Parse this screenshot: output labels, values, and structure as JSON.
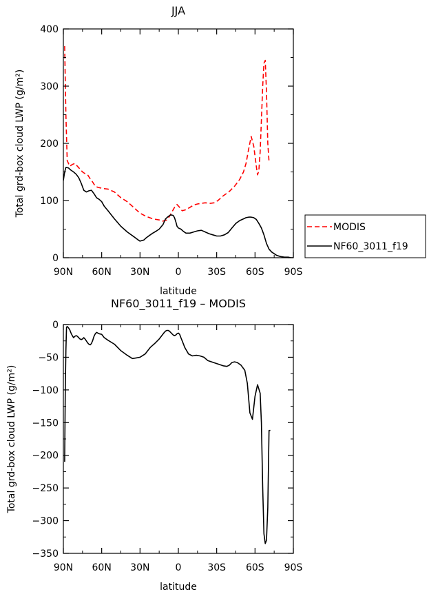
{
  "chart_data": [
    {
      "type": "line",
      "title": "JJA",
      "xlabel": "latitude",
      "ylabel": "Total grd-box cloud LWP (g/m²)",
      "xlim": [
        90,
        -90
      ],
      "ylim": [
        0,
        400
      ],
      "xtick_values": [
        90,
        60,
        30,
        0,
        -30,
        -60,
        -90
      ],
      "xtick_labels": [
        "90N",
        "60N",
        "30N",
        "0",
        "30S",
        "60S",
        "90S"
      ],
      "ytick_values": [
        0,
        100,
        200,
        300,
        400
      ],
      "ytick_labels": [
        "0",
        "100",
        "200",
        "300",
        "400"
      ],
      "legend": {
        "placement": "right",
        "entries": [
          {
            "series": "MODIS",
            "label": "MODIS"
          },
          {
            "series": "NF60_3011_f19",
            "label": "NF60_3011_f19"
          }
        ]
      },
      "series": [
        {
          "name": "MODIS",
          "color": "#ff0000",
          "dash": "dashed",
          "x": [
            89,
            88,
            87,
            86,
            85,
            83,
            81,
            79,
            77,
            75,
            73,
            71,
            69,
            67,
            65,
            63,
            61,
            59,
            55,
            50,
            45,
            40,
            35,
            30,
            25,
            20,
            15,
            12,
            9,
            7,
            5,
            3,
            1,
            -1,
            -3,
            -6,
            -9,
            -12,
            -15,
            -18,
            -21,
            -25,
            -28,
            -31,
            -35,
            -40,
            -44,
            -48,
            -51,
            -53,
            -55,
            -57,
            -59,
            -61,
            -62,
            -63,
            -64,
            -65,
            -66,
            -67,
            -68,
            -69,
            -70,
            -71
          ],
          "y": [
            370,
            250,
            170,
            165,
            160,
            163,
            165,
            160,
            155,
            150,
            147,
            145,
            138,
            132,
            125,
            123,
            122,
            121,
            120,
            115,
            105,
            98,
            88,
            78,
            72,
            68,
            66,
            64,
            66,
            72,
            80,
            88,
            93,
            88,
            82,
            84,
            88,
            92,
            94,
            95,
            96,
            95,
            96,
            100,
            108,
            116,
            125,
            137,
            150,
            165,
            190,
            212,
            195,
            160,
            145,
            152,
            185,
            240,
            300,
            340,
            345,
            290,
            200,
            168
          ]
        },
        {
          "name": "NF60_3011_f19",
          "color": "#000000",
          "dash": "solid",
          "x": [
            90,
            89,
            88,
            86,
            84,
            82,
            80,
            78,
            76,
            74,
            72,
            70,
            68,
            66,
            64,
            62,
            60,
            58,
            55,
            50,
            45,
            40,
            35,
            32,
            30,
            27,
            25,
            22,
            20,
            17,
            15,
            12,
            10,
            8,
            6,
            4,
            3,
            2,
            1,
            0,
            -2,
            -4,
            -6,
            -9,
            -12,
            -15,
            -18,
            -21,
            -24,
            -27,
            -30,
            -33,
            -36,
            -39,
            -42,
            -45,
            -48,
            -51,
            -53,
            -55,
            -57,
            -59,
            -61,
            -63,
            -65,
            -67,
            -69,
            -71,
            -73,
            -75,
            -77,
            -80,
            -83,
            -86,
            -88,
            -90
          ],
          "y": [
            135,
            150,
            158,
            157,
            153,
            150,
            146,
            140,
            130,
            118,
            115,
            117,
            118,
            112,
            105,
            102,
            98,
            90,
            82,
            68,
            55,
            45,
            37,
            32,
            29,
            31,
            35,
            40,
            43,
            47,
            50,
            58,
            68,
            72,
            75,
            74,
            70,
            63,
            55,
            52,
            50,
            46,
            43,
            43,
            45,
            47,
            48,
            45,
            42,
            40,
            38,
            38,
            40,
            44,
            52,
            60,
            65,
            68,
            70,
            71,
            71,
            70,
            67,
            60,
            52,
            40,
            25,
            15,
            10,
            7,
            4,
            2,
            1,
            1,
            0,
            0
          ]
        }
      ]
    },
    {
      "type": "line",
      "title": "NF60_3011_f19 – MODIS",
      "xlabel": "latitude",
      "ylabel": "Total grd-box cloud LWP (g/m²)",
      "xlim": [
        90,
        -90
      ],
      "ylim": [
        -350,
        0
      ],
      "xtick_values": [
        90,
        60,
        30,
        0,
        -30,
        -60,
        -90
      ],
      "xtick_labels": [
        "90N",
        "60N",
        "30N",
        "0",
        "30S",
        "60S",
        "90S"
      ],
      "ytick_values": [
        0,
        -50,
        -100,
        -150,
        -200,
        -250,
        -300,
        -350
      ],
      "ytick_labels": [
        "0",
        "−50",
        "−100",
        "−150",
        "−200",
        "−250",
        "−300",
        "−350"
      ],
      "series": [
        {
          "color": "#000000",
          "dash": "solid",
          "x": [
            89,
            88.5,
            88,
            87.5,
            87,
            86,
            85,
            84,
            83,
            82,
            81,
            80,
            79,
            78,
            77,
            76,
            75,
            74,
            73,
            72,
            71,
            70,
            69,
            68,
            67,
            66,
            65,
            64,
            63,
            62,
            60,
            58,
            55,
            50,
            45,
            40,
            36,
            33,
            30,
            26,
            22,
            18,
            15,
            13,
            11,
            10,
            9,
            8,
            7,
            6,
            5,
            4,
            3,
            2,
            1,
            0,
            -1,
            -2,
            -3,
            -5,
            -8,
            -11,
            -14,
            -17,
            -20,
            -23,
            -26,
            -29,
            -32,
            -35,
            -38,
            -40,
            -42,
            -44,
            -46,
            -49,
            -52,
            -54,
            -56,
            -58,
            -60,
            -62,
            -64,
            -65,
            -66,
            -67,
            -68,
            -69,
            -70,
            -71,
            -72
          ],
          "y": [
            -210,
            -100,
            -40,
            -4,
            -3,
            -5,
            -8,
            -13,
            -17,
            -20,
            -18,
            -17,
            -18,
            -20,
            -22,
            -23,
            -22,
            -20,
            -22,
            -25,
            -28,
            -30,
            -31,
            -29,
            -24,
            -18,
            -14,
            -12,
            -13,
            -14,
            -15,
            -20,
            -24,
            -30,
            -40,
            -47,
            -52,
            -51,
            -50,
            -45,
            -35,
            -28,
            -22,
            -17,
            -12,
            -10,
            -9,
            -9,
            -10,
            -12,
            -14,
            -16,
            -17,
            -16,
            -14,
            -13,
            -15,
            -20,
            -25,
            -35,
            -45,
            -48,
            -47,
            -48,
            -50,
            -55,
            -57,
            -59,
            -61,
            -63,
            -64,
            -62,
            -58,
            -57,
            -58,
            -62,
            -70,
            -90,
            -135,
            -145,
            -110,
            -92,
            -105,
            -150,
            -250,
            -320,
            -335,
            -330,
            -280,
            -162,
            -162
          ]
        }
      ]
    }
  ]
}
